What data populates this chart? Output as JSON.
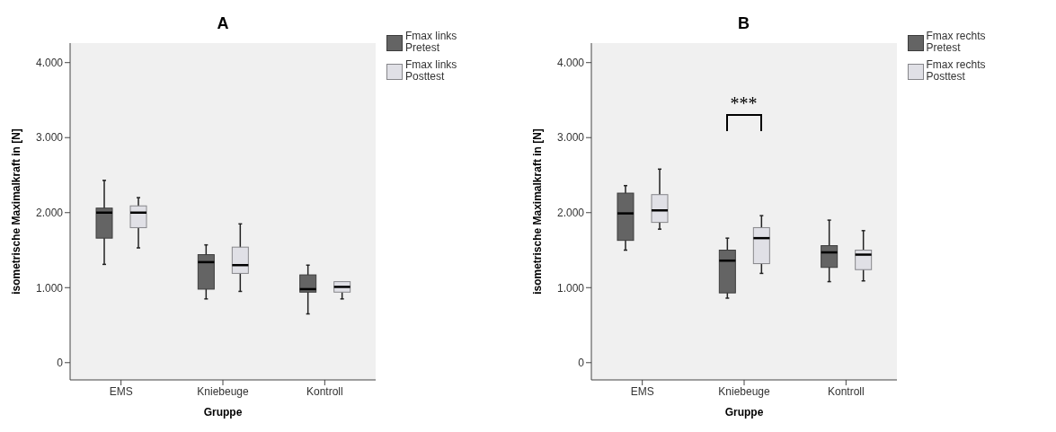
{
  "chart_data": [
    {
      "type": "box",
      "title": "A",
      "xlabel": "Gruppe",
      "ylabel": "isometrische Maximalkraft in [N]",
      "categories": [
        "EMS",
        "Kniebeuge",
        "Kontroll"
      ],
      "ylim": [
        -230,
        4260
      ],
      "yticks": [
        {
          "value": 0,
          "label": "0"
        },
        {
          "value": 1000,
          "label": "1.000"
        },
        {
          "value": 2000,
          "label": "2.000"
        },
        {
          "value": 3000,
          "label": "3.000"
        },
        {
          "value": 4000,
          "label": "4.000"
        }
      ],
      "legend": "top right",
      "grid": false,
      "series": [
        {
          "name": "Fmax links Pretest",
          "color": "#646464",
          "boxes": [
            {
              "low": 1310,
              "q1": 1660,
              "median": 2000,
              "q3": 2060,
              "high": 2430
            },
            {
              "low": 850,
              "q1": 980,
              "median": 1340,
              "q3": 1440,
              "high": 1570
            },
            {
              "low": 650,
              "q1": 940,
              "median": 980,
              "q3": 1170,
              "high": 1300
            }
          ]
        },
        {
          "name": "Fmax links Posttest",
          "color": "#e0e0e6",
          "boxes": [
            {
              "low": 1530,
              "q1": 1800,
              "median": 2000,
              "q3": 2090,
              "high": 2200
            },
            {
              "low": 950,
              "q1": 1190,
              "median": 1300,
              "q3": 1540,
              "high": 1850
            },
            {
              "low": 850,
              "q1": 940,
              "median": 1010,
              "q3": 1080,
              "high": 1080
            }
          ]
        }
      ]
    },
    {
      "type": "box",
      "title": "B",
      "xlabel": "Gruppe",
      "ylabel": "isometrische Maximalkraft in [N]",
      "categories": [
        "EMS",
        "Kniebeuge",
        "Kontroll"
      ],
      "ylim": [
        -230,
        4260
      ],
      "yticks": [
        {
          "value": 0,
          "label": "0"
        },
        {
          "value": 1000,
          "label": "1.000"
        },
        {
          "value": 2000,
          "label": "2.000"
        },
        {
          "value": 3000,
          "label": "3.000"
        },
        {
          "value": 4000,
          "label": "4.000"
        }
      ],
      "legend": "top right",
      "grid": false,
      "annotations": [
        "***"
      ],
      "series": [
        {
          "name": "Fmax rechts Pretest",
          "color": "#646464",
          "boxes": [
            {
              "low": 1500,
              "q1": 1630,
              "median": 1990,
              "q3": 2260,
              "high": 2360
            },
            {
              "low": 860,
              "q1": 930,
              "median": 1360,
              "q3": 1500,
              "high": 1660
            },
            {
              "low": 1080,
              "q1": 1270,
              "median": 1470,
              "q3": 1560,
              "high": 1900
            }
          ]
        },
        {
          "name": "Fmax rechts Posttest",
          "color": "#e0e0e6",
          "boxes": [
            {
              "low": 1780,
              "q1": 1870,
              "median": 2030,
              "q3": 2240,
              "high": 2580
            },
            {
              "low": 1190,
              "q1": 1320,
              "median": 1660,
              "q3": 1800,
              "high": 1960
            },
            {
              "low": 1090,
              "q1": 1240,
              "median": 1440,
              "q3": 1500,
              "high": 1760
            }
          ]
        }
      ]
    }
  ]
}
